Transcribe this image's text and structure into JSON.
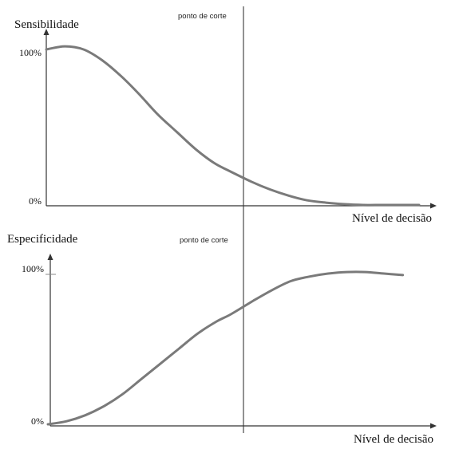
{
  "chart_data": [
    {
      "type": "line",
      "ylabel": "Sensibilidade",
      "xlabel": "Nível de decisão",
      "yticks": [
        "100%",
        "0%"
      ],
      "ylim": [
        0,
        100
      ],
      "xlim": [
        0,
        100
      ],
      "annotation": "ponto de corte",
      "cutoff_x": 49,
      "curve_color": "#7a7a7a",
      "series": [
        {
          "x": [
            0,
            5,
            10,
            15,
            20,
            25,
            30,
            35,
            40,
            45,
            49,
            55,
            60,
            65,
            70,
            75,
            80,
            85,
            90,
            95,
            100
          ],
          "values": [
            100,
            102,
            100,
            93,
            83,
            71,
            58,
            47,
            36,
            27,
            22,
            15,
            10,
            6,
            3,
            1.5,
            0.5,
            0,
            0,
            0,
            0
          ]
        }
      ]
    },
    {
      "type": "line",
      "ylabel": "Especificidade",
      "xlabel": "Nível de decisão",
      "yticks": [
        "100%",
        "0%"
      ],
      "ylim": [
        0,
        100
      ],
      "xlim": [
        0,
        100
      ],
      "annotation": "ponto de corte",
      "cutoff_x": 49,
      "curve_color": "#7a7a7a",
      "series": [
        {
          "x": [
            0,
            5,
            10,
            15,
            20,
            25,
            30,
            35,
            40,
            45,
            49,
            55,
            60,
            65,
            70,
            75,
            80,
            85,
            90,
            95
          ],
          "values": [
            0,
            2,
            6,
            12,
            20,
            30,
            40,
            50,
            60,
            68,
            73,
            82,
            89,
            95,
            98,
            100,
            101,
            101,
            100,
            99
          ]
        }
      ]
    }
  ]
}
